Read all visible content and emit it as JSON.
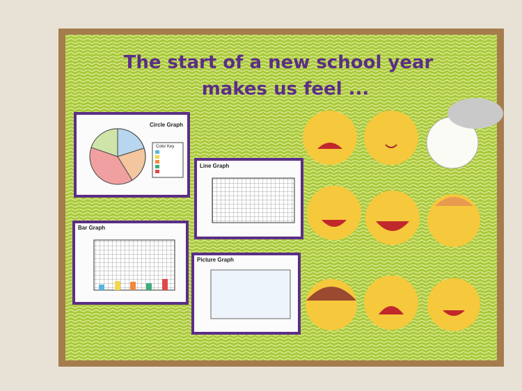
{
  "title": {
    "line1": "The start of a new school year",
    "line2": "makes us feel ..."
  },
  "graphs": {
    "circle": {
      "title": "Circle Graph",
      "key_title": "Color Key"
    },
    "line": {
      "title": "Line Graph"
    },
    "bar": {
      "title": "Bar Graph"
    },
    "picture": {
      "title": "Picture Graph"
    }
  }
}
